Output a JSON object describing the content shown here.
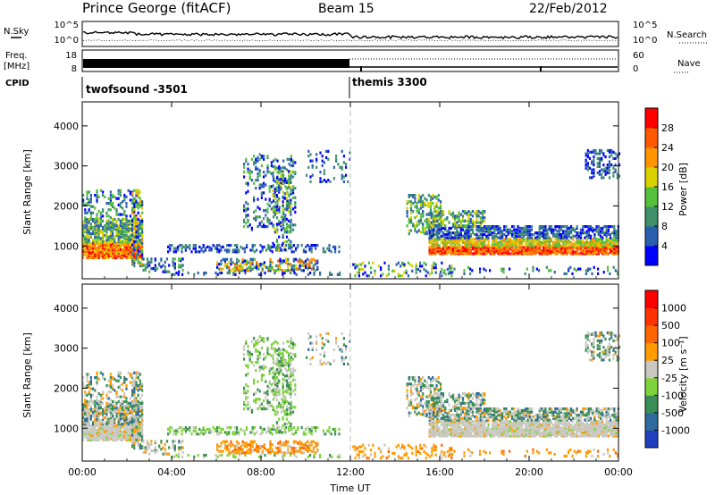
{
  "header": {
    "station": "Prince George (fitACF)",
    "beam": "Beam 15",
    "date": "22/Feb/2012"
  },
  "top_panel": {
    "left_label": "N.Sky",
    "right_label": "N.Search",
    "left_ticks": [
      "10^5",
      "10^0"
    ],
    "right_ticks": [
      "10^5",
      "10^0"
    ]
  },
  "freq_panel": {
    "left_label_line1": "Freq.",
    "left_label_line2": "[MHz]",
    "right_label": "Nave",
    "left_ticks": [
      "18",
      "8"
    ],
    "right_ticks": [
      "60",
      "0"
    ]
  },
  "cpid_panel": {
    "label": "CPID",
    "entries": [
      {
        "name": "twofsound -3501",
        "start_hour": 0
      },
      {
        "name": "themis 3300",
        "start_hour": 12
      }
    ]
  },
  "chart_data": [
    {
      "type": "heatmap",
      "title": "",
      "xlabel": "",
      "ylabel": "Slant Range [km]",
      "xlim": [
        0,
        24
      ],
      "ylim": [
        180,
        4600
      ],
      "y_ticks": [
        "1000",
        "2000",
        "3000",
        "4000"
      ],
      "colorbar": {
        "label": "Power [dB]",
        "ticks": [
          "4",
          "8",
          "12",
          "16",
          "20",
          "24",
          "28"
        ],
        "colors": [
          "#0000ff",
          "#2a5fb0",
          "#3f8f6a",
          "#55c03a",
          "#d9d000",
          "#ff9500",
          "#ff5a00",
          "#ff0000"
        ]
      }
    },
    {
      "type": "heatmap",
      "title": "",
      "xlabel": "Time UT",
      "ylabel": "Slant Range [km]",
      "xlim": [
        0,
        24
      ],
      "ylim": [
        180,
        4600
      ],
      "x_ticks": [
        "00:00",
        "04:00",
        "08:00",
        "12:00",
        "16:00",
        "20:00",
        "00:00"
      ],
      "y_ticks": [
        "1000",
        "2000",
        "3000",
        "4000"
      ],
      "colorbar": {
        "label": "Velocity [m s⁻¹]",
        "ticks": [
          "1000",
          "500",
          "100",
          "25",
          "-25",
          "-100",
          "-500",
          "-1000"
        ],
        "colors": [
          "#1f3fbf",
          "#2e6a9a",
          "#3a8e55",
          "#7fd23a",
          "#c8c8c0",
          "#ff9a00",
          "#ff6600",
          "#ff3300",
          "#ff0000"
        ]
      }
    }
  ]
}
